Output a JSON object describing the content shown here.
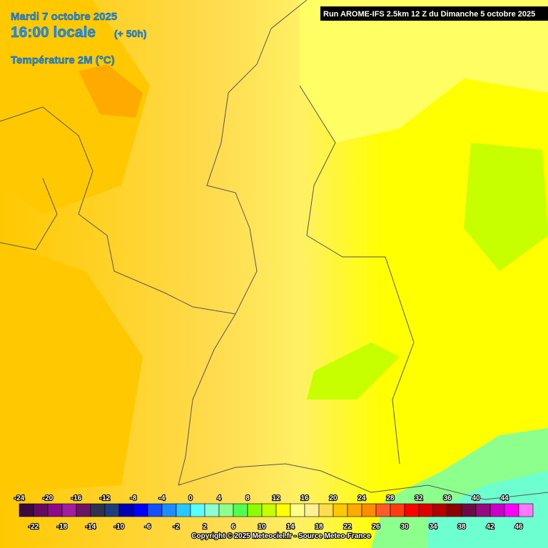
{
  "header": {
    "date": "Mardi 7 octobre 2025",
    "time": "16:00 locale",
    "lead": "(+ 50h)",
    "parameter": "Température 2M (°C)",
    "run": "Run AROME-IFS 2.5km 12 Z du Dimanche 5 octobre 2025"
  },
  "legend": {
    "values": [
      -24,
      -22,
      -20,
      -18,
      -16,
      -14,
      -12,
      -10,
      -8,
      -6,
      -4,
      -2,
      0,
      2,
      4,
      6,
      8,
      10,
      12,
      14,
      16,
      18,
      20,
      22,
      24,
      26,
      28,
      30,
      32,
      34,
      36,
      38,
      40,
      42,
      44,
      46
    ],
    "colors": [
      "#3c0a3c",
      "#640a64",
      "#8c0a8c",
      "#a01ea0",
      "#6e1464",
      "#2d3250",
      "#1e3c82",
      "#0000b4",
      "#0000ff",
      "#1450ff",
      "#1e8cff",
      "#28c8ff",
      "#5affff",
      "#8cffd2",
      "#8cff8c",
      "#50ff50",
      "#8cff00",
      "#c8ff00",
      "#ffff00",
      "#ffff8c",
      "#fff096",
      "#ffdc50",
      "#ffc800",
      "#ffaa00",
      "#ff8c00",
      "#ff5a28",
      "#ff3c14",
      "#ff0000",
      "#dc0000",
      "#b40000",
      "#8c0000",
      "#6e0a46",
      "#960a82",
      "#c800c8",
      "#ff00ff",
      "#ff78ff"
    ]
  },
  "footer": {
    "copyright": "Copyright © 2025 Meteociel.fr - Source Meteo-France"
  }
}
